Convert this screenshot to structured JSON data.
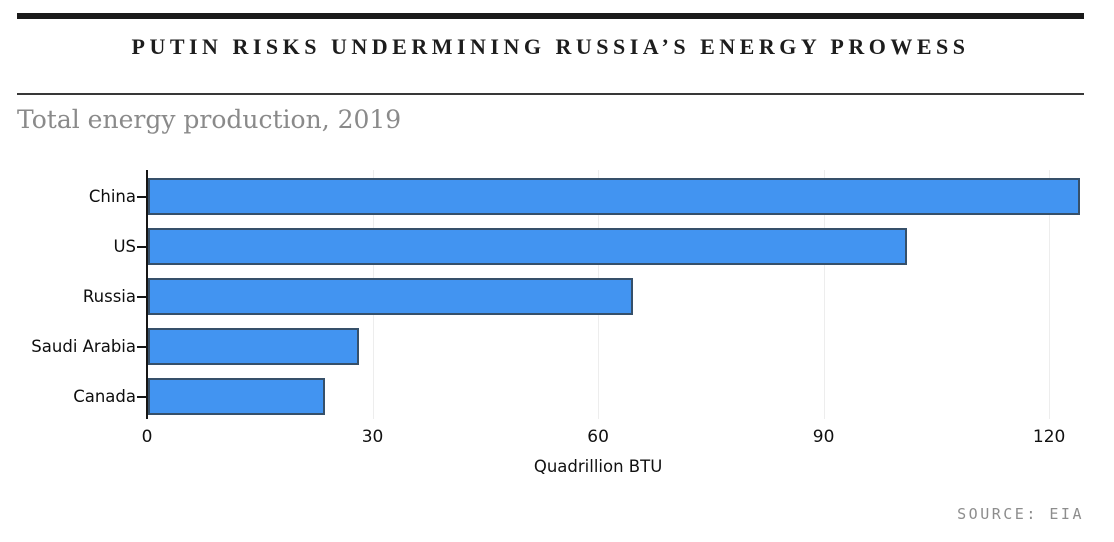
{
  "header": {
    "title": "PUTIN RISKS UNDERMINING RUSSIA’S ENERGY PROWESS",
    "subtitle": "Total energy production, 2019"
  },
  "footer": {
    "source": "SOURCE: EIA"
  },
  "colors": {
    "bar_fill": "#4294f1",
    "bar_border": "#36506a",
    "axis": "#161616",
    "gridline": "#ededed",
    "title_text": "#1d1d1d",
    "subtitle_text": "#8a8a8a",
    "source_text": "#8d8d8d",
    "tick_text": "#111111"
  },
  "chart_data": {
    "type": "bar",
    "orientation": "horizontal",
    "title": "Total energy production, 2019",
    "categories": [
      "China",
      "US",
      "Russia",
      "Saudi Arabia",
      "Canada"
    ],
    "values": [
      124,
      101,
      64.5,
      28,
      23.5
    ],
    "xlabel": "Quadrillion BTU",
    "ylabel": "",
    "xlim": [
      0,
      124.5
    ],
    "xticks": [
      0,
      30,
      60,
      90,
      120
    ],
    "grid": "vertical-light",
    "legend": "none",
    "source": "EIA"
  }
}
